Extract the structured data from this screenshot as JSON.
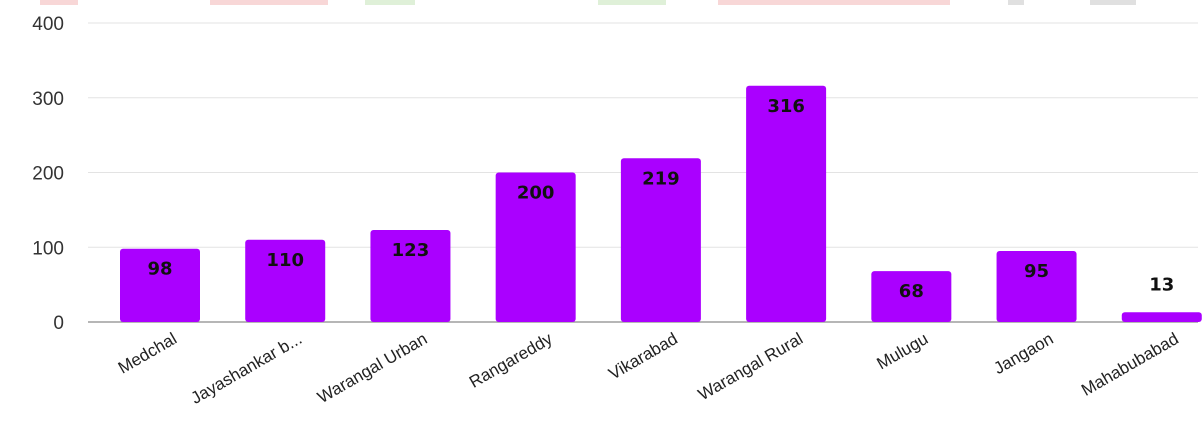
{
  "chart_data": {
    "type": "bar",
    "categories": [
      "Medchal",
      "Jayashankar b...",
      "Warangal Urban",
      "Rangareddy",
      "Vikarabad",
      "Warangal Rural",
      "Mulugu",
      "Jangaon",
      "Mahabubabad"
    ],
    "values": [
      98,
      110,
      123,
      200,
      219,
      316,
      68,
      95,
      13
    ],
    "data_labels": [
      "98",
      "110",
      "123",
      "200",
      "219",
      "316",
      "68",
      "95",
      "13"
    ],
    "y_ticks": [
      "0",
      "100",
      "200",
      "300",
      "400"
    ],
    "ylim": [
      0,
      400
    ],
    "grid": true,
    "legend": "top, partially cut off",
    "bar_color": "#aa00ff",
    "legend_colors": [
      "#f8d7d7",
      "#f8d7d7",
      "#dff0d8",
      "#dff0d8",
      "#f8d7d7",
      "#e0e0e0",
      "#e0e0e0"
    ]
  }
}
